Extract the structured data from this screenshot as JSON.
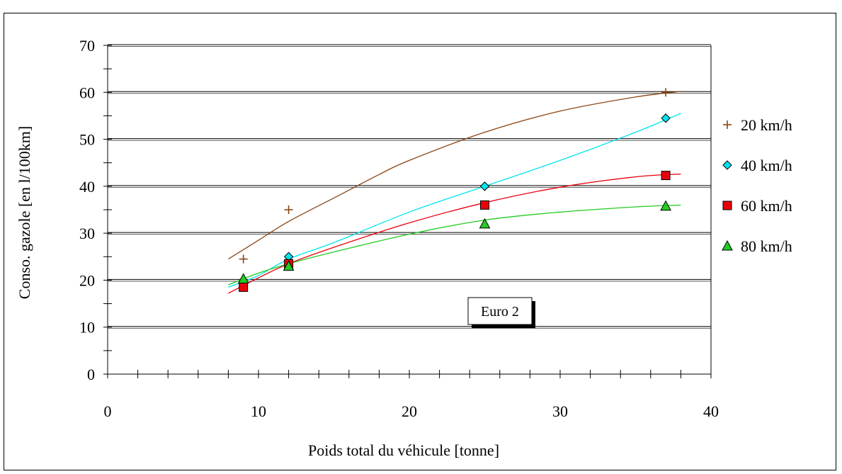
{
  "chart_data": {
    "type": "scatter",
    "xlabel": "Poids total du véhicule  [tonne]",
    "ylabel": "Conso. gazole  [en l/100km]",
    "xlim": [
      0,
      40
    ],
    "ylim": [
      0,
      70
    ],
    "x_ticks": [
      "0",
      "10",
      "20",
      "30",
      "40"
    ],
    "y_ticks": [
      "0",
      "10",
      "20",
      "30",
      "40",
      "50",
      "60",
      "70"
    ],
    "grid": "horizontal",
    "legend_position": "right",
    "annotation": "Euro 2",
    "series": [
      {
        "name": "20 km/h",
        "marker": "plus",
        "color": "#8B4513",
        "x": [
          9,
          12,
          37
        ],
        "y": [
          24.5,
          35,
          60
        ],
        "trend": {
          "x": [
            8,
            10,
            12,
            15,
            18,
            20,
            25,
            30,
            35,
            38
          ],
          "y": [
            24.5,
            28.5,
            32.5,
            37.5,
            42.5,
            45.5,
            51.5,
            56,
            59,
            60.2
          ]
        }
      },
      {
        "name": "40 km/h",
        "marker": "diamond",
        "color": "#00E5EE",
        "x": [
          9,
          12,
          25,
          37
        ],
        "y": [
          19.5,
          25,
          40,
          54.5
        ],
        "trend": {
          "x": [
            8,
            10,
            12,
            15,
            20,
            25,
            30,
            35,
            38
          ],
          "y": [
            18.5,
            21,
            24.5,
            28,
            34.5,
            40,
            45.5,
            51.5,
            55.5
          ]
        }
      },
      {
        "name": "60 km/h",
        "marker": "square",
        "color": "#E8000B",
        "x": [
          9,
          12,
          25,
          37
        ],
        "y": [
          18.5,
          23.5,
          36,
          42.3
        ],
        "trend": {
          "x": [
            8,
            10,
            12,
            15,
            20,
            25,
            30,
            35,
            38
          ],
          "y": [
            17.2,
            20.5,
            23.5,
            27,
            32.2,
            36.5,
            39.8,
            42,
            42.6
          ]
        }
      },
      {
        "name": "80 km/h",
        "marker": "triangle",
        "color": "#22CC22",
        "x": [
          9,
          12,
          25,
          37
        ],
        "y": [
          20.3,
          23,
          32,
          35.8
        ],
        "trend": {
          "x": [
            8,
            10,
            12,
            15,
            20,
            25,
            30,
            35,
            38
          ],
          "y": [
            19,
            21.5,
            23.5,
            26,
            29.8,
            32.8,
            34.5,
            35.6,
            36
          ]
        }
      }
    ]
  }
}
